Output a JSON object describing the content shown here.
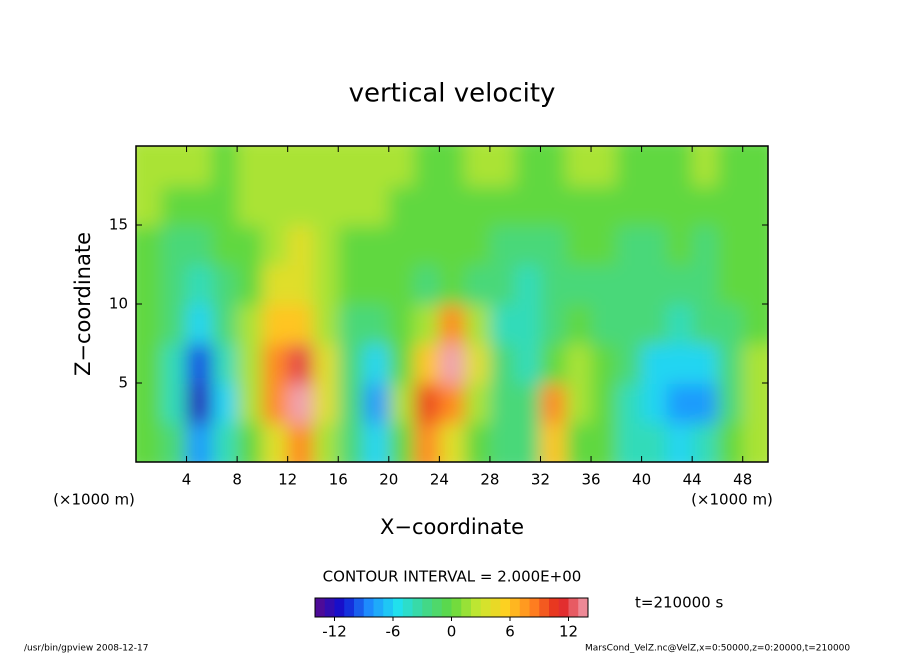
{
  "chart_data": {
    "type": "heatmap",
    "title": "vertical velocity",
    "x_label": "X−coordinate",
    "y_label": "Z−coordinate",
    "x_unit": "(×1000 m)",
    "contour_interval": "CONTOUR INTERVAL = 2.000E+00",
    "time_label": "t=210000 s",
    "footer_left": "/usr/bin/gpview   2008-12-17",
    "footer_right": "MarsCond_VelZ.nc@VelZ,x=0:50000,z=0:20000,t=210000",
    "xlim": [
      0,
      50
    ],
    "ylim": [
      0,
      20
    ],
    "xticks": [
      4,
      8,
      12,
      16,
      20,
      24,
      28,
      32,
      36,
      40,
      44,
      48
    ],
    "yticks": [
      5,
      10,
      15
    ],
    "x": [
      1,
      3,
      5,
      7,
      9,
      11,
      13,
      15,
      17,
      19,
      21,
      23,
      25,
      27,
      29,
      31,
      33,
      35,
      37,
      39,
      41,
      43,
      45,
      47,
      49
    ],
    "y": [
      1.25,
      3.75,
      6.25,
      8.75,
      11.25,
      13.75,
      16.25,
      18.75
    ],
    "values": [
      [
        0,
        -2,
        -8,
        -4,
        0,
        4,
        8,
        2,
        -2,
        -6,
        0,
        8,
        4,
        0,
        -2,
        -2,
        6,
        0,
        0,
        -4,
        -4,
        -6,
        -4,
        0,
        2
      ],
      [
        0,
        -4,
        -12,
        -6,
        2,
        8,
        14,
        4,
        -2,
        -8,
        2,
        10,
        8,
        2,
        -2,
        -2,
        8,
        2,
        0,
        -4,
        -6,
        -8,
        -8,
        -2,
        2
      ],
      [
        0,
        -4,
        -10,
        -4,
        2,
        8,
        12,
        4,
        -2,
        -6,
        0,
        6,
        14,
        4,
        -2,
        -4,
        0,
        2,
        0,
        -2,
        -6,
        -6,
        -6,
        -2,
        2
      ],
      [
        0,
        -2,
        -6,
        -2,
        2,
        6,
        6,
        2,
        -2,
        -2,
        0,
        2,
        8,
        2,
        -4,
        -4,
        -2,
        0,
        -2,
        -2,
        -2,
        -4,
        -2,
        -2,
        0
      ],
      [
        0,
        -2,
        -4,
        -2,
        0,
        4,
        4,
        2,
        0,
        0,
        0,
        -2,
        0,
        -2,
        -2,
        -4,
        -2,
        -2,
        -2,
        -2,
        -2,
        -2,
        -2,
        0,
        0
      ],
      [
        0,
        -2,
        -2,
        0,
        0,
        2,
        4,
        2,
        0,
        0,
        0,
        0,
        0,
        0,
        -2,
        -2,
        -2,
        0,
        0,
        -2,
        -2,
        0,
        -2,
        0,
        0
      ],
      [
        2,
        0,
        0,
        0,
        2,
        2,
        2,
        2,
        2,
        2,
        0,
        0,
        0,
        0,
        0,
        0,
        0,
        0,
        0,
        0,
        0,
        0,
        0,
        0,
        0
      ],
      [
        2,
        2,
        2,
        0,
        2,
        2,
        2,
        2,
        2,
        2,
        2,
        0,
        0,
        2,
        2,
        0,
        0,
        2,
        2,
        0,
        0,
        0,
        2,
        0,
        0
      ]
    ],
    "colorbar_lim": [
      -14,
      14
    ],
    "colorbar_ticks": [
      -12,
      -6,
      0,
      6,
      12
    ],
    "colors": [
      "#5a0a8c",
      "#1010d0",
      "#1e90ff",
      "#20e0f0",
      "#40d890",
      "#60d840",
      "#c8e830",
      "#ffd020",
      "#ff8020",
      "#e02020",
      "#f0a0b0"
    ]
  }
}
